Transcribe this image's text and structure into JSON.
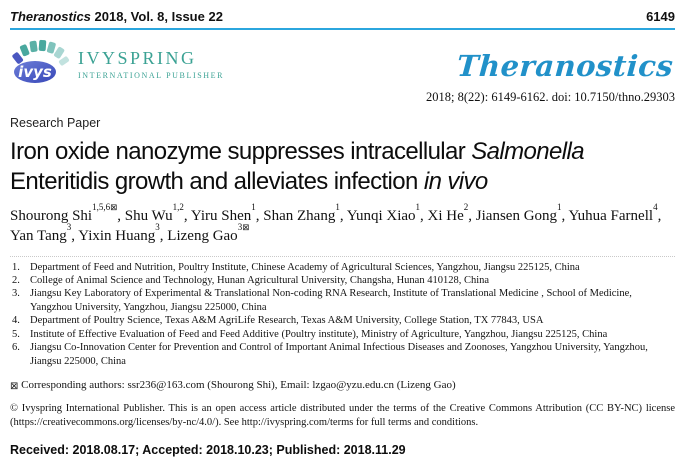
{
  "header": {
    "journal_name": "Theranostics",
    "issue_info": " 2018, Vol. 8, Issue 22",
    "page_number": "6149"
  },
  "publisher": {
    "name": "IVYSPRING",
    "subtitle": "INTERNATIONAL PUBLISHER",
    "logo_monogram": "ivys"
  },
  "journal_logo": {
    "wordmark": "Theranostics"
  },
  "citation": {
    "line": "2018; 8(22): 6149-6162. doi: 10.7150/thno.29303"
  },
  "article": {
    "type_label": "Research Paper",
    "title_segments": [
      {
        "text": "Iron oxide nanozyme suppresses intracellular ",
        "italic": false
      },
      {
        "text": "Salmonella",
        "italic": true
      },
      {
        "br": true
      },
      {
        "text": "Enteritidis growth and alleviates infection ",
        "italic": false
      },
      {
        "text": "in vivo",
        "italic": true
      }
    ],
    "mail_icon": "⊠",
    "author_separator": ", ",
    "authors": [
      {
        "name": "Shourong Shi",
        "sup": "1,5,6",
        "mail": true
      },
      {
        "name": "Shu Wu",
        "sup": "1,2",
        "mail": false
      },
      {
        "name": "Yiru Shen",
        "sup": "1",
        "mail": false
      },
      {
        "name": "Shan Zhang",
        "sup": "1",
        "mail": false
      },
      {
        "name": "Yunqi Xiao",
        "sup": "1",
        "mail": false
      },
      {
        "name": "Xi He",
        "sup": "2",
        "mail": false
      },
      {
        "name": "Jiansen Gong",
        "sup": "1",
        "mail": false
      },
      {
        "name": "Yuhua Farnell",
        "sup": "4",
        "mail": false
      },
      {
        "name": "Yan Tang",
        "sup": "3",
        "mail": false
      },
      {
        "name": "Yixin Huang",
        "sup": "3",
        "mail": false
      },
      {
        "name": "Lizeng Gao",
        "sup": "3",
        "mail": true
      }
    ],
    "affiliations": [
      "Department of Feed and Nutrition, Poultry Institute, Chinese Academy of Agricultural Sciences, Yangzhou, Jiangsu 225125, China",
      "College of Animal Science and Technology, Hunan Agricultural University, Changsha, Hunan 410128, China",
      "Jiangsu Key Laboratory of Experimental & Translational Non-coding RNA Research, Institute of Translational Medicine , School of Medicine, Yangzhou University, Yangzhou, Jiangsu 225000, China",
      "Department of Poultry Science, Texas A&M AgriLife Research, Texas A&M University, College Station, TX 77843, USA",
      "Institute of Effective Evaluation of Feed and Feed Additive (Poultry institute), Ministry of Agriculture, Yangzhou, Jiangsu 225125, China",
      "Jiangsu Co-Innovation Center for Prevention and Control of Important Animal Infectious Diseases and Zoonoses, Yangzhou University, Yangzhou, Jiangsu 225000, China"
    ],
    "corresponding": {
      "icon": "⊠",
      "text": " Corresponding authors: ssr236@163.com (Shourong Shi), Email: lzgao@yzu.edu.cn (Lizeng Gao)"
    },
    "license": "© Ivyspring International Publisher. This is an open access article distributed under the terms of the Creative Commons Attribution (CC BY-NC) license (https://creativecommons.org/licenses/by-nc/4.0/). See http://ivyspring.com/terms for full terms and conditions.",
    "dates": "Received: 2018.08.17; Accepted: 2018.10.23; Published: 2018.11.29"
  },
  "colors": {
    "rule_blue": "#2ba6de",
    "ivyspring_teal": "#3ba294",
    "wordmark_blue": "#2191c9"
  }
}
